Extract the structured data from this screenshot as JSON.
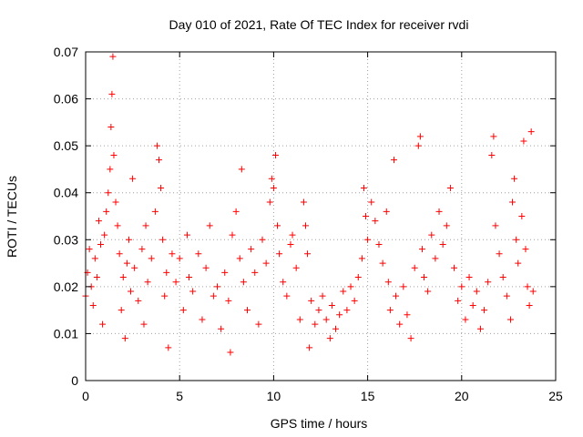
{
  "chart_data": {
    "type": "scatter",
    "title": "Day 010 of 2021, Rate Of TEC Index for receiver rvdi",
    "xlabel": "GPS time / hours",
    "ylabel": "ROTI / TECUs",
    "xlim": [
      0,
      25
    ],
    "ylim": [
      0,
      0.07
    ],
    "xticks": [
      "0",
      "5",
      "10",
      "15",
      "20",
      "25"
    ],
    "yticks": [
      "0",
      "0.01",
      "0.02",
      "0.03",
      "0.04",
      "0.05",
      "0.06",
      "0.07"
    ],
    "grid": true,
    "legend": "none",
    "marker": "plus",
    "color": "#ff0000",
    "series": [
      {
        "points": [
          [
            0.0,
            0.018
          ],
          [
            0.1,
            0.023
          ],
          [
            0.2,
            0.028
          ],
          [
            0.3,
            0.02
          ],
          [
            0.4,
            0.016
          ],
          [
            0.5,
            0.026
          ],
          [
            0.6,
            0.022
          ],
          [
            0.7,
            0.034
          ],
          [
            0.8,
            0.029
          ],
          [
            0.9,
            0.012
          ],
          [
            1.0,
            0.031
          ],
          [
            1.1,
            0.036
          ],
          [
            1.2,
            0.04
          ],
          [
            1.3,
            0.045
          ],
          [
            1.35,
            0.054
          ],
          [
            1.4,
            0.061
          ],
          [
            1.45,
            0.069
          ],
          [
            1.5,
            0.048
          ],
          [
            1.6,
            0.038
          ],
          [
            1.7,
            0.033
          ],
          [
            1.8,
            0.027
          ],
          [
            1.9,
            0.015
          ],
          [
            2.0,
            0.022
          ],
          [
            2.1,
            0.009
          ],
          [
            2.2,
            0.025
          ],
          [
            2.3,
            0.03
          ],
          [
            2.4,
            0.019
          ],
          [
            2.5,
            0.043
          ],
          [
            2.6,
            0.024
          ],
          [
            2.8,
            0.017
          ],
          [
            3.0,
            0.028
          ],
          [
            3.1,
            0.012
          ],
          [
            3.2,
            0.033
          ],
          [
            3.3,
            0.021
          ],
          [
            3.5,
            0.026
          ],
          [
            3.7,
            0.036
          ],
          [
            3.8,
            0.05
          ],
          [
            3.9,
            0.047
          ],
          [
            4.0,
            0.041
          ],
          [
            4.1,
            0.03
          ],
          [
            4.2,
            0.018
          ],
          [
            4.3,
            0.023
          ],
          [
            4.4,
            0.007
          ],
          [
            4.6,
            0.027
          ],
          [
            4.8,
            0.021
          ],
          [
            5.0,
            0.026
          ],
          [
            5.2,
            0.015
          ],
          [
            5.4,
            0.031
          ],
          [
            5.5,
            0.022
          ],
          [
            5.7,
            0.019
          ],
          [
            6.0,
            0.027
          ],
          [
            6.2,
            0.013
          ],
          [
            6.4,
            0.024
          ],
          [
            6.6,
            0.033
          ],
          [
            6.8,
            0.018
          ],
          [
            7.0,
            0.02
          ],
          [
            7.2,
            0.011
          ],
          [
            7.4,
            0.023
          ],
          [
            7.6,
            0.017
          ],
          [
            7.7,
            0.006
          ],
          [
            7.8,
            0.031
          ],
          [
            8.0,
            0.036
          ],
          [
            8.2,
            0.026
          ],
          [
            8.3,
            0.045
          ],
          [
            8.4,
            0.021
          ],
          [
            8.6,
            0.015
          ],
          [
            8.8,
            0.028
          ],
          [
            9.0,
            0.023
          ],
          [
            9.2,
            0.012
          ],
          [
            9.4,
            0.03
          ],
          [
            9.6,
            0.025
          ],
          [
            9.8,
            0.038
          ],
          [
            9.9,
            0.043
          ],
          [
            10.0,
            0.041
          ],
          [
            10.1,
            0.048
          ],
          [
            10.2,
            0.033
          ],
          [
            10.3,
            0.027
          ],
          [
            10.5,
            0.021
          ],
          [
            10.7,
            0.018
          ],
          [
            10.9,
            0.029
          ],
          [
            11.0,
            0.031
          ],
          [
            11.2,
            0.024
          ],
          [
            11.4,
            0.013
          ],
          [
            11.6,
            0.038
          ],
          [
            11.7,
            0.033
          ],
          [
            11.8,
            0.027
          ],
          [
            11.9,
            0.007
          ],
          [
            12.0,
            0.017
          ],
          [
            12.2,
            0.012
          ],
          [
            12.4,
            0.015
          ],
          [
            12.6,
            0.018
          ],
          [
            12.8,
            0.013
          ],
          [
            13.0,
            0.009
          ],
          [
            13.1,
            0.016
          ],
          [
            13.3,
            0.011
          ],
          [
            13.5,
            0.014
          ],
          [
            13.7,
            0.019
          ],
          [
            13.9,
            0.015
          ],
          [
            14.1,
            0.02
          ],
          [
            14.3,
            0.017
          ],
          [
            14.5,
            0.022
          ],
          [
            14.7,
            0.026
          ],
          [
            14.8,
            0.041
          ],
          [
            14.9,
            0.035
          ],
          [
            15.0,
            0.03
          ],
          [
            15.2,
            0.038
          ],
          [
            15.4,
            0.034
          ],
          [
            15.6,
            0.029
          ],
          [
            15.8,
            0.025
          ],
          [
            16.0,
            0.036
          ],
          [
            16.1,
            0.021
          ],
          [
            16.2,
            0.015
          ],
          [
            16.4,
            0.047
          ],
          [
            16.5,
            0.018
          ],
          [
            16.7,
            0.012
          ],
          [
            16.9,
            0.02
          ],
          [
            17.1,
            0.014
          ],
          [
            17.3,
            0.009
          ],
          [
            17.5,
            0.024
          ],
          [
            17.7,
            0.05
          ],
          [
            17.8,
            0.052
          ],
          [
            17.9,
            0.028
          ],
          [
            18.0,
            0.022
          ],
          [
            18.2,
            0.019
          ],
          [
            18.4,
            0.031
          ],
          [
            18.6,
            0.026
          ],
          [
            18.8,
            0.036
          ],
          [
            19.0,
            0.029
          ],
          [
            19.2,
            0.033
          ],
          [
            19.4,
            0.041
          ],
          [
            19.6,
            0.024
          ],
          [
            19.8,
            0.017
          ],
          [
            20.0,
            0.02
          ],
          [
            20.2,
            0.013
          ],
          [
            20.4,
            0.022
          ],
          [
            20.6,
            0.016
          ],
          [
            20.8,
            0.019
          ],
          [
            21.0,
            0.011
          ],
          [
            21.2,
            0.015
          ],
          [
            21.4,
            0.021
          ],
          [
            21.6,
            0.048
          ],
          [
            21.7,
            0.052
          ],
          [
            21.8,
            0.033
          ],
          [
            22.0,
            0.027
          ],
          [
            22.2,
            0.022
          ],
          [
            22.4,
            0.018
          ],
          [
            22.6,
            0.013
          ],
          [
            22.7,
            0.038
          ],
          [
            22.8,
            0.043
          ],
          [
            22.9,
            0.03
          ],
          [
            23.0,
            0.025
          ],
          [
            23.2,
            0.035
          ],
          [
            23.3,
            0.051
          ],
          [
            23.4,
            0.028
          ],
          [
            23.5,
            0.02
          ],
          [
            23.6,
            0.016
          ],
          [
            23.7,
            0.053
          ],
          [
            23.8,
            0.019
          ]
        ]
      }
    ]
  }
}
